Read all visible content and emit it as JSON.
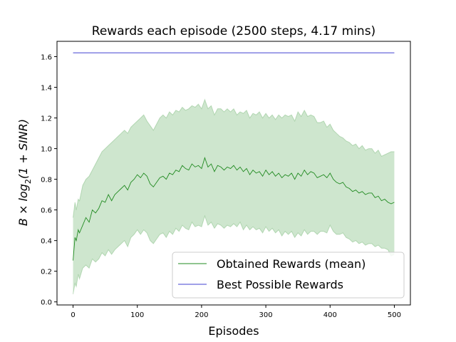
{
  "chart_data": {
    "type": "line",
    "title": "Rewards each episode (2500 steps, 4.17 mins)",
    "xlabel": "Episodes",
    "ylabel_parts": {
      "pre": "B × log",
      "sub": "2",
      "post": "(1 + SINR)"
    },
    "xlim": [
      -25,
      525
    ],
    "ylim": [
      -0.02,
      1.7
    ],
    "xticks": [
      0,
      100,
      200,
      300,
      400,
      500
    ],
    "yticks": [
      0.0,
      0.2,
      0.4,
      0.6,
      0.8,
      1.0,
      1.2,
      1.4,
      1.6
    ],
    "grid": false,
    "legend": {
      "placement": "lower-right"
    },
    "series": [
      {
        "name": "Obtained Rewards (mean)",
        "color": "#228b22",
        "band_color": "#228b22",
        "x": [
          0,
          3,
          5,
          8,
          10,
          15,
          20,
          25,
          30,
          35,
          40,
          45,
          50,
          55,
          60,
          65,
          70,
          75,
          80,
          85,
          90,
          95,
          100,
          105,
          110,
          115,
          120,
          125,
          130,
          135,
          140,
          145,
          150,
          155,
          160,
          165,
          170,
          175,
          180,
          185,
          190,
          195,
          200,
          205,
          210,
          215,
          220,
          225,
          230,
          235,
          240,
          245,
          250,
          255,
          260,
          265,
          270,
          275,
          280,
          285,
          290,
          295,
          300,
          305,
          310,
          315,
          320,
          325,
          330,
          335,
          340,
          345,
          350,
          355,
          360,
          365,
          370,
          375,
          380,
          385,
          390,
          395,
          400,
          405,
          410,
          415,
          420,
          425,
          430,
          435,
          440,
          445,
          450,
          455,
          460,
          465,
          470,
          475,
          480,
          485,
          490,
          495,
          500
        ],
        "mean": [
          0.27,
          0.42,
          0.4,
          0.47,
          0.45,
          0.5,
          0.55,
          0.52,
          0.6,
          0.58,
          0.61,
          0.66,
          0.65,
          0.7,
          0.66,
          0.7,
          0.72,
          0.74,
          0.76,
          0.73,
          0.78,
          0.8,
          0.83,
          0.81,
          0.84,
          0.82,
          0.77,
          0.75,
          0.78,
          0.81,
          0.82,
          0.8,
          0.84,
          0.83,
          0.86,
          0.85,
          0.89,
          0.87,
          0.86,
          0.9,
          0.88,
          0.89,
          0.87,
          0.94,
          0.88,
          0.9,
          0.85,
          0.89,
          0.88,
          0.86,
          0.88,
          0.87,
          0.89,
          0.86,
          0.88,
          0.85,
          0.87,
          0.83,
          0.86,
          0.84,
          0.85,
          0.82,
          0.86,
          0.83,
          0.85,
          0.82,
          0.84,
          0.81,
          0.83,
          0.82,
          0.84,
          0.8,
          0.84,
          0.82,
          0.86,
          0.83,
          0.85,
          0.84,
          0.81,
          0.82,
          0.83,
          0.81,
          0.84,
          0.8,
          0.78,
          0.77,
          0.78,
          0.75,
          0.74,
          0.72,
          0.73,
          0.71,
          0.72,
          0.7,
          0.71,
          0.71,
          0.68,
          0.69,
          0.66,
          0.67,
          0.65,
          0.64,
          0.65
        ],
        "upper": [
          0.55,
          0.65,
          0.6,
          0.67,
          0.66,
          0.76,
          0.8,
          0.82,
          0.86,
          0.9,
          0.94,
          0.98,
          1.0,
          1.02,
          1.04,
          1.06,
          1.08,
          1.1,
          1.12,
          1.1,
          1.14,
          1.16,
          1.18,
          1.2,
          1.22,
          1.18,
          1.15,
          1.12,
          1.16,
          1.2,
          1.22,
          1.2,
          1.24,
          1.22,
          1.25,
          1.24,
          1.27,
          1.25,
          1.26,
          1.28,
          1.27,
          1.29,
          1.26,
          1.32,
          1.26,
          1.28,
          1.22,
          1.26,
          1.26,
          1.24,
          1.26,
          1.24,
          1.26,
          1.22,
          1.24,
          1.23,
          1.25,
          1.2,
          1.23,
          1.22,
          1.24,
          1.2,
          1.23,
          1.2,
          1.22,
          1.19,
          1.22,
          1.2,
          1.22,
          1.21,
          1.22,
          1.18,
          1.24,
          1.21,
          1.25,
          1.21,
          1.22,
          1.21,
          1.17,
          1.17,
          1.18,
          1.14,
          1.16,
          1.12,
          1.1,
          1.08,
          1.07,
          1.05,
          1.04,
          1.02,
          1.03,
          1.0,
          1.02,
          0.99,
          1.0,
          1.0,
          0.97,
          0.99,
          0.95,
          0.96,
          0.97,
          0.98,
          0.98
        ],
        "lower": [
          0.05,
          0.12,
          0.1,
          0.18,
          0.15,
          0.22,
          0.24,
          0.22,
          0.28,
          0.26,
          0.28,
          0.32,
          0.3,
          0.34,
          0.31,
          0.34,
          0.36,
          0.38,
          0.4,
          0.36,
          0.42,
          0.44,
          0.47,
          0.44,
          0.47,
          0.45,
          0.4,
          0.38,
          0.41,
          0.44,
          0.45,
          0.42,
          0.46,
          0.44,
          0.48,
          0.46,
          0.5,
          0.48,
          0.47,
          0.52,
          0.49,
          0.5,
          0.49,
          0.56,
          0.5,
          0.52,
          0.48,
          0.51,
          0.5,
          0.48,
          0.5,
          0.49,
          0.51,
          0.49,
          0.52,
          0.47,
          0.5,
          0.47,
          0.49,
          0.47,
          0.48,
          0.45,
          0.49,
          0.46,
          0.48,
          0.45,
          0.47,
          0.43,
          0.46,
          0.44,
          0.46,
          0.42,
          0.45,
          0.43,
          0.47,
          0.44,
          0.46,
          0.46,
          0.44,
          0.46,
          0.46,
          0.45,
          0.5,
          0.46,
          0.44,
          0.44,
          0.45,
          0.42,
          0.41,
          0.39,
          0.4,
          0.38,
          0.39,
          0.37,
          0.38,
          0.38,
          0.36,
          0.37,
          0.35,
          0.35,
          0.34,
          0.3,
          0.31
        ]
      },
      {
        "name": "Best Possible Rewards",
        "color": "#4040d0",
        "x": [
          0,
          500
        ],
        "mean": [
          1.625,
          1.625
        ]
      }
    ]
  }
}
